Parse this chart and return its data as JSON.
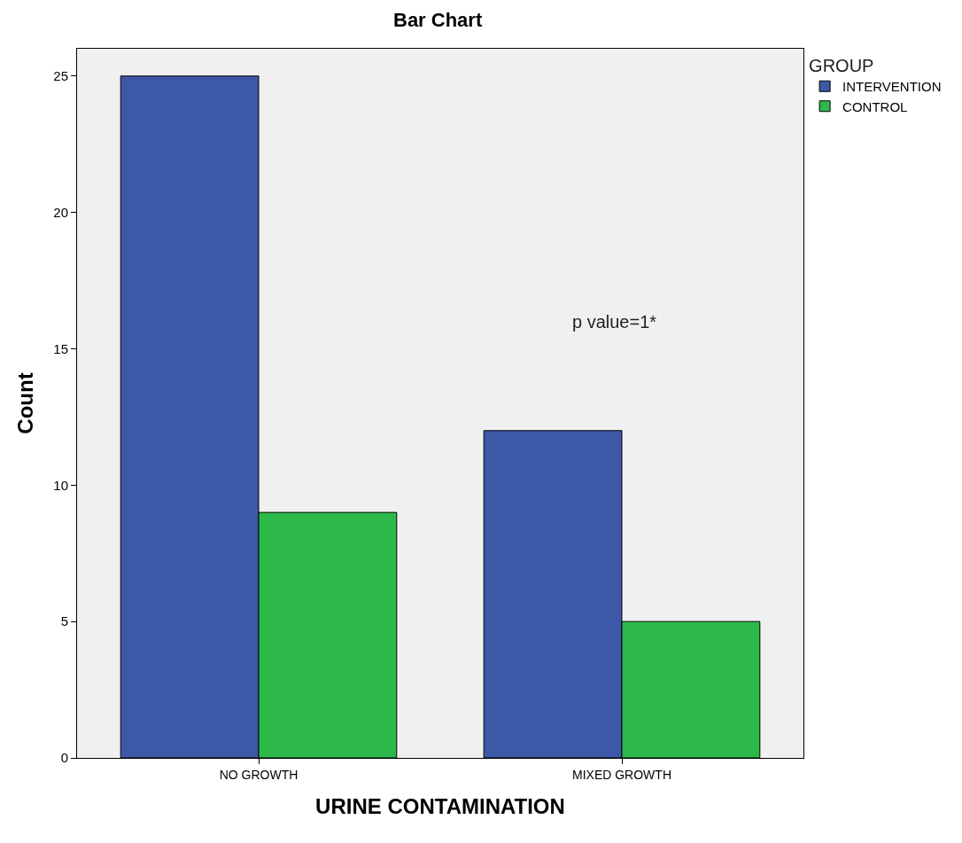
{
  "chart_data": {
    "type": "bar",
    "title": "Bar Chart",
    "xlabel": "URINE CONTAMINATION",
    "ylabel": "Count",
    "legend_title": "GROUP",
    "categories": [
      "NO GROWTH",
      "MIXED GROWTH"
    ],
    "series": [
      {
        "name": "INTERVENTION",
        "color": "#3e58a8",
        "values": [
          25,
          12
        ]
      },
      {
        "name": "CONTROL",
        "color": "#2db84a",
        "values": [
          9,
          5
        ]
      }
    ],
    "ylim": [
      0,
      26
    ],
    "yticks": [
      0,
      5,
      10,
      15,
      20,
      25
    ],
    "grid": false,
    "legend": "top right",
    "annotations": [
      "p value=1*"
    ]
  }
}
